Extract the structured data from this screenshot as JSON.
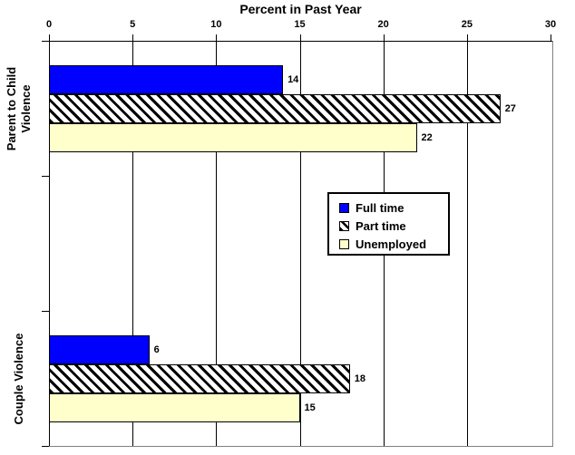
{
  "chart_data": {
    "type": "bar",
    "orientation": "horizontal",
    "title": "Percent in Past Year",
    "xlabel": "Percent in Past Year",
    "ylabel": "",
    "xlim": [
      0,
      30
    ],
    "x_ticks": [
      0,
      5,
      10,
      15,
      20,
      25,
      30
    ],
    "grid": true,
    "legend_position": "middle-right",
    "categories": [
      "Parent to Child Violence",
      "Couple Violence"
    ],
    "category_label_lines": [
      [
        "Parent to Child",
        "Violence"
      ],
      [
        "Couple Violence"
      ]
    ],
    "series": [
      {
        "name": "Full time",
        "pattern": "solid",
        "color": "#0000ff",
        "values": [
          14,
          6
        ]
      },
      {
        "name": "Part time",
        "pattern": "diagonal-hatch",
        "color": "#000000",
        "values": [
          27,
          18
        ]
      },
      {
        "name": "Unemployed",
        "pattern": "solid",
        "color": "#ffffcc",
        "values": [
          22,
          15
        ]
      }
    ],
    "data_labels": [
      [
        14,
        6
      ],
      [
        27,
        18
      ],
      [
        22,
        15
      ]
    ],
    "colors": {
      "full_time": "#0000ff",
      "part_time_hatch_fg": "#000000",
      "part_time_hatch_bg": "#ffffff",
      "unemployed": "#ffffcc",
      "axis": "#000000",
      "plot_wall": "#808080",
      "text": "#000000",
      "background": "#ffffff"
    }
  }
}
